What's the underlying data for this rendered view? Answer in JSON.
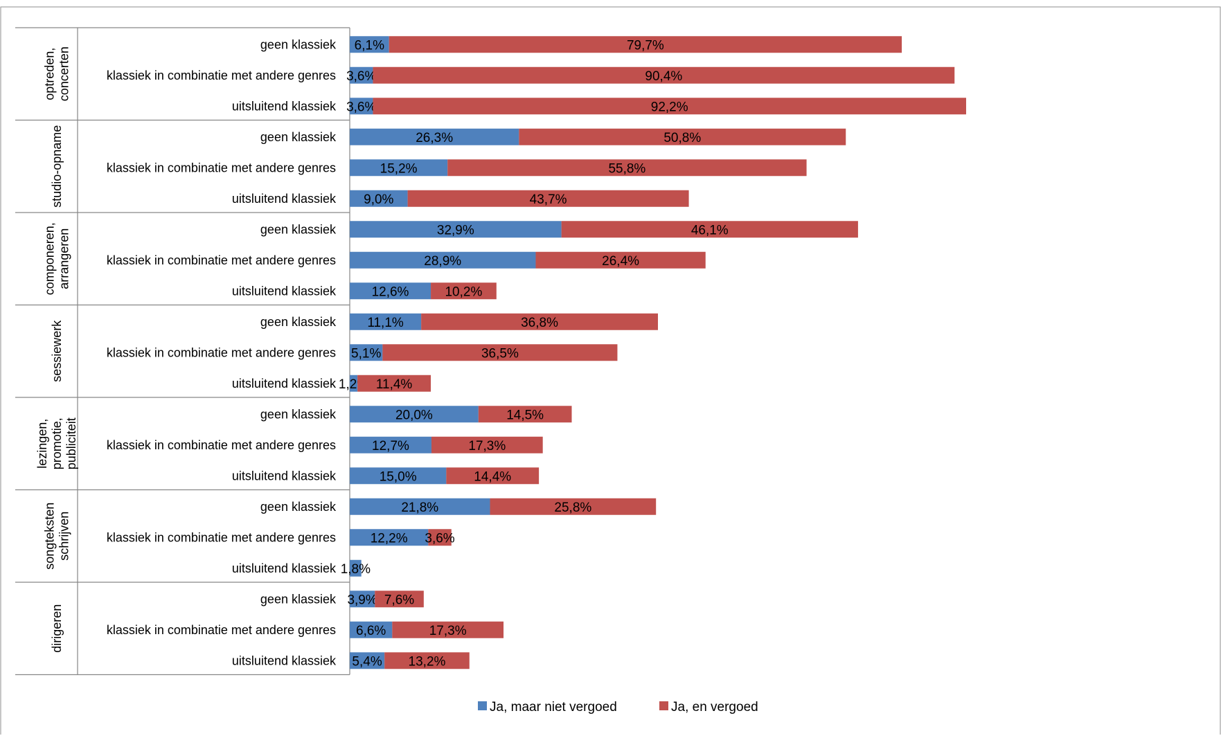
{
  "chart_data": {
    "type": "bar",
    "orientation": "horizontal",
    "stacked": true,
    "title": "",
    "xlabel": "",
    "ylabel": "",
    "xlim": [
      0,
      100
    ],
    "grid": false,
    "legend_position": "bottom",
    "legend": [
      "Ja, maar niet vergoed",
      "Ja, en vergoed"
    ],
    "series_colors": [
      "#4f81bd",
      "#c0504d"
    ],
    "groups": [
      {
        "label": "optreden, concerten",
        "rows": [
          {
            "label": "geen klassiek",
            "values": [
              6.1,
              79.7
            ],
            "labels": [
              "6,1%",
              "79,7%"
            ]
          },
          {
            "label": "klassiek in combinatie met andere genres",
            "values": [
              3.6,
              90.4
            ],
            "labels": [
              "3,6%",
              "90,4%"
            ]
          },
          {
            "label": "uitsluitend klassiek",
            "values": [
              3.6,
              92.2
            ],
            "labels": [
              "3,6%",
              "92,2%"
            ]
          }
        ]
      },
      {
        "label": "studio-opname",
        "rows": [
          {
            "label": "geen klassiek",
            "values": [
              26.3,
              50.8
            ],
            "labels": [
              "26,3%",
              "50,8%"
            ]
          },
          {
            "label": "klassiek in combinatie met andere genres",
            "values": [
              15.2,
              55.8
            ],
            "labels": [
              "15,2%",
              "55,8%"
            ]
          },
          {
            "label": "uitsluitend klassiek",
            "values": [
              9.0,
              43.7
            ],
            "labels": [
              "9,0%",
              "43,7%"
            ]
          }
        ]
      },
      {
        "label": "componeren, arrangeren",
        "rows": [
          {
            "label": "geen klassiek",
            "values": [
              32.9,
              46.1
            ],
            "labels": [
              "32,9%",
              "46,1%"
            ]
          },
          {
            "label": "klassiek in combinatie met andere genres",
            "values": [
              28.9,
              26.4
            ],
            "labels": [
              "28,9%",
              "26,4%"
            ]
          },
          {
            "label": "uitsluitend klassiek",
            "values": [
              12.6,
              10.2
            ],
            "labels": [
              "12,6%",
              "10,2%"
            ]
          }
        ]
      },
      {
        "label": "sessiewerk",
        "rows": [
          {
            "label": "geen klassiek",
            "values": [
              11.1,
              36.8
            ],
            "labels": [
              "11,1%",
              "36,8%"
            ]
          },
          {
            "label": "klassiek in combinatie met andere genres",
            "values": [
              5.1,
              36.5
            ],
            "labels": [
              "5,1%",
              "36,5%"
            ]
          },
          {
            "label": "uitsluitend klassiek",
            "values": [
              1.2,
              11.4
            ],
            "labels": [
              "1,2%",
              "11,4%"
            ]
          }
        ]
      },
      {
        "label": "lezingen, promotie, publiciteit",
        "rows": [
          {
            "label": "geen klassiek",
            "values": [
              20.0,
              14.5
            ],
            "labels": [
              "20,0%",
              "14,5%"
            ]
          },
          {
            "label": "klassiek in combinatie met andere genres",
            "values": [
              12.7,
              17.3
            ],
            "labels": [
              "12,7%",
              "17,3%"
            ]
          },
          {
            "label": "uitsluitend klassiek",
            "values": [
              15.0,
              14.4
            ],
            "labels": [
              "15,0%",
              "14,4%"
            ]
          }
        ]
      },
      {
        "label": "songteksten schrijven",
        "rows": [
          {
            "label": "geen klassiek",
            "values": [
              21.8,
              25.8
            ],
            "labels": [
              "21,8%",
              "25,8%"
            ]
          },
          {
            "label": "klassiek in combinatie met andere genres",
            "values": [
              12.2,
              3.6
            ],
            "labels": [
              "12,2%",
              "3,6%"
            ]
          },
          {
            "label": "uitsluitend klassiek",
            "values": [
              1.8,
              0
            ],
            "labels": [
              "1,8%",
              ""
            ]
          }
        ]
      },
      {
        "label": "dirigeren",
        "rows": [
          {
            "label": "geen klassiek",
            "values": [
              3.9,
              7.6
            ],
            "labels": [
              "3,9%",
              "7,6%"
            ]
          },
          {
            "label": "klassiek in combinatie met andere genres",
            "values": [
              6.6,
              17.3
            ],
            "labels": [
              "6,6%",
              "17,3%"
            ]
          },
          {
            "label": "uitsluitend klassiek",
            "values": [
              5.4,
              13.2
            ],
            "labels": [
              "5,4%",
              "13,2%"
            ]
          }
        ]
      }
    ]
  }
}
